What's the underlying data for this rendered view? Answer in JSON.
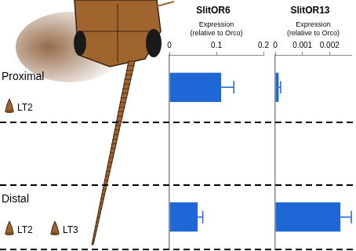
{
  "chart_data": [
    {
      "type": "bar",
      "title": "SlitOR6",
      "orientation": "horizontal",
      "xlabel": "Expression\n(relative to Orco)",
      "categories": [
        "Proximal",
        null,
        "Distal"
      ],
      "values": [
        0.11,
        null,
        0.06
      ],
      "errors": [
        0.027,
        null,
        0.011
      ],
      "color": "#1f66d6",
      "xlim": [
        0,
        0.2
      ],
      "xticks": [
        0,
        0.1,
        0.2
      ],
      "grid": false,
      "tick_labels": "x"
    },
    {
      "type": "bar",
      "title": "SlitOR13",
      "orientation": "horizontal",
      "xlabel": "Expression\n(relative to Orco)",
      "categories": [
        "Proximal",
        null,
        "Distal"
      ],
      "values": [
        0.000125,
        null,
        0.0024
      ],
      "errors": [
        7.5e-05,
        null,
        0.0004
      ],
      "color": "#1f66d6",
      "xlim": [
        0,
        0.0028
      ],
      "xticks": [
        0,
        0.001,
        0.002
      ],
      "grid": false,
      "tick_labels": "x"
    }
  ],
  "sensilla": {
    "Proximal": [
      "LT2"
    ],
    "Distal": [
      "LT2",
      "LT3"
    ]
  }
}
